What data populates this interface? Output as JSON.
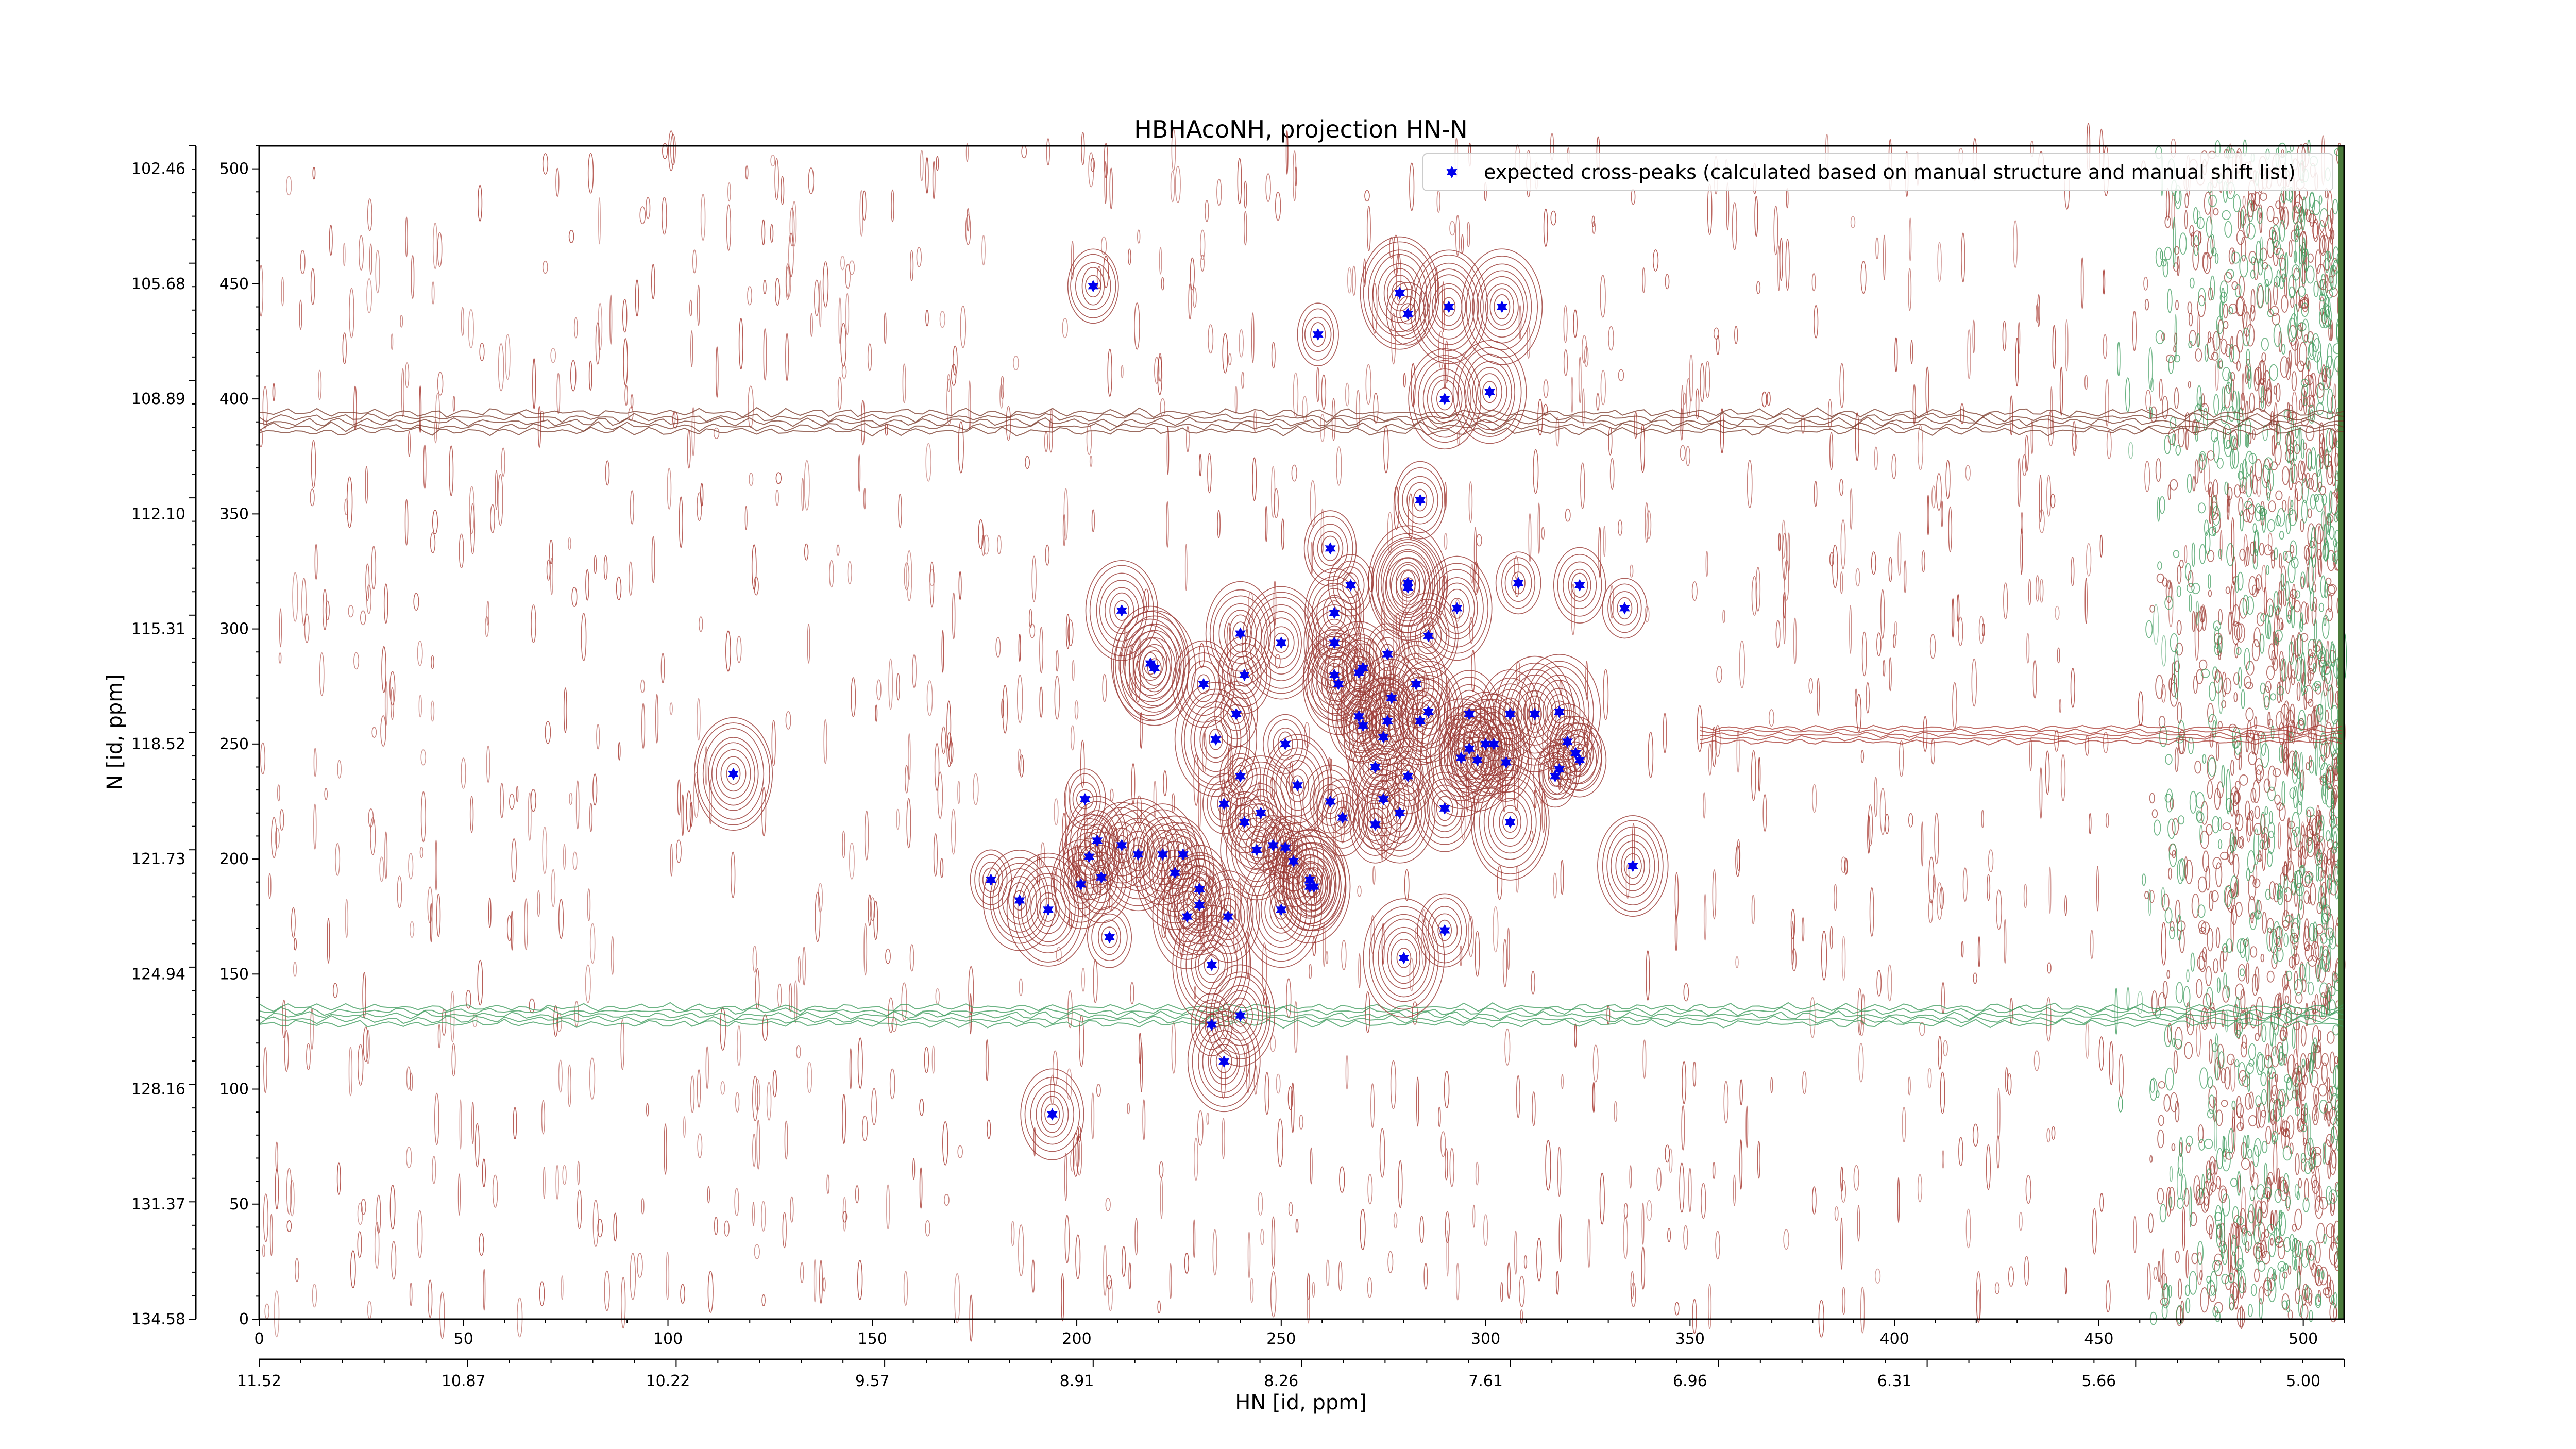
{
  "chart_data": {
    "type": "scatter",
    "title": "HBHAcoNH, projection HN-N",
    "xlabel": "HN [id, ppm]",
    "ylabel": "N [id, ppm]",
    "x_index_range": [
      0,
      510
    ],
    "y_index_range": [
      0,
      510
    ],
    "x_index_ticks": [
      0,
      50,
      100,
      150,
      200,
      250,
      300,
      350,
      400,
      450,
      500
    ],
    "y_index_ticks": [
      0,
      50,
      100,
      150,
      200,
      250,
      300,
      350,
      400,
      450,
      500
    ],
    "x_ppm_ticks": [
      "11.52",
      "10.87",
      "10.22",
      "9.57",
      "8.91",
      "8.26",
      "7.61",
      "6.96",
      "6.31",
      "5.66",
      "5.00"
    ],
    "y_ppm_ticks": [
      "134.58",
      "131.37",
      "128.16",
      "124.94",
      "121.73",
      "118.52",
      "115.31",
      "112.10",
      "108.89",
      "105.68",
      "102.46"
    ],
    "legend": {
      "position": "top-right",
      "entries": [
        "expected cross-peaks (calculated based on manual structure and manual shift list)"
      ]
    },
    "series": [
      {
        "name": "expected cross-peaks (calculated based on manual structure and manual shift list)",
        "color": "#0000ee",
        "marker": "star",
        "x": [
          204,
          279,
          281,
          291,
          304,
          259,
          290,
          301,
          284,
          281,
          293,
          262,
          267,
          281,
          240,
          263,
          270,
          308,
          263,
          323,
          334,
          211,
          263,
          276,
          286,
          218,
          219,
          231,
          241,
          250,
          277,
          264,
          269,
          283,
          270,
          275,
          239,
          234,
          251,
          269,
          276,
          284,
          286,
          296,
          306,
          312,
          318,
          320,
          300,
          302,
          296,
          298,
          322,
          323,
          317,
          281,
          294,
          305,
          318,
          240,
          273,
          202,
          205,
          211,
          215,
          221,
          226,
          244,
          248,
          251,
          253,
          258,
          257,
          262,
          273,
          275,
          279,
          245,
          254,
          265,
          290,
          306,
          336,
          224,
          230,
          230,
          250,
          257,
          237,
          233,
          240,
          203,
          201,
          206,
          179,
          186,
          193,
          208,
          227,
          233,
          236,
          280,
          290,
          241,
          236,
          194,
          116
        ],
        "y": [
          449,
          446,
          437,
          440,
          440,
          428,
          400,
          403,
          356,
          318,
          309,
          335,
          319,
          320,
          298,
          294,
          283,
          320,
          307,
          319,
          309,
          308,
          280,
          289,
          297,
          285,
          283,
          276,
          280,
          294,
          270,
          276,
          281,
          276,
          258,
          253,
          263,
          252,
          250,
          262,
          260,
          260,
          264,
          263,
          263,
          263,
          264,
          251,
          250,
          250,
          248,
          243,
          246,
          243,
          236,
          236,
          244,
          242,
          239,
          236,
          240,
          226,
          208,
          206,
          202,
          202,
          202,
          204,
          206,
          205,
          199,
          188,
          191,
          225,
          215,
          226,
          220,
          220,
          232,
          218,
          222,
          216,
          197,
          194,
          187,
          180,
          178,
          188,
          175,
          154,
          132,
          201,
          189,
          192,
          191,
          182,
          178,
          166,
          175,
          128,
          112,
          157,
          169,
          216,
          224,
          89,
          237
        ]
      }
    ]
  }
}
